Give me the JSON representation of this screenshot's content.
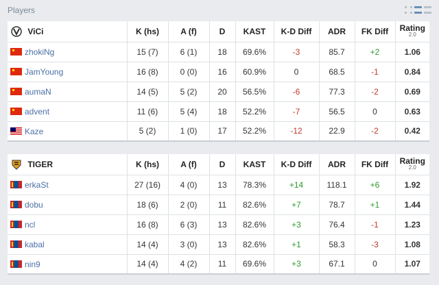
{
  "section": {
    "title": "Players"
  },
  "columns": [
    "K (hs)",
    "A (f)",
    "D",
    "KAST",
    "K-D Diff",
    "ADR",
    "FK Diff",
    "Rating"
  ],
  "rating_version": "2.0",
  "teams": [
    {
      "name": "ViCi",
      "players": [
        {
          "flag": "cn",
          "name": "zhokiNg",
          "k": "15 (7)",
          "a": "6 (1)",
          "d": "18",
          "kast": "69.6%",
          "kd": "-3",
          "kd_sign": "neg",
          "adr": "85.7",
          "fk": "+2",
          "fk_sign": "pos",
          "rating": "1.06"
        },
        {
          "flag": "cn",
          "name": "JamYoung",
          "k": "16 (8)",
          "a": "0 (0)",
          "d": "16",
          "kast": "60.9%",
          "kd": "0",
          "kd_sign": "neu",
          "adr": "68.5",
          "fk": "-1",
          "fk_sign": "neg",
          "rating": "0.84"
        },
        {
          "flag": "cn",
          "name": "aumaN",
          "k": "14 (5)",
          "a": "5 (2)",
          "d": "20",
          "kast": "56.5%",
          "kd": "-6",
          "kd_sign": "neg",
          "adr": "77.3",
          "fk": "-2",
          "fk_sign": "neg",
          "rating": "0.69"
        },
        {
          "flag": "cn",
          "name": "advent",
          "k": "11 (6)",
          "a": "5 (4)",
          "d": "18",
          "kast": "52.2%",
          "kd": "-7",
          "kd_sign": "neg",
          "adr": "56.5",
          "fk": "0",
          "fk_sign": "neu",
          "rating": "0.63"
        },
        {
          "flag": "my",
          "name": "Kaze",
          "k": "5 (2)",
          "a": "1 (0)",
          "d": "17",
          "kast": "52.2%",
          "kd": "-12",
          "kd_sign": "neg",
          "adr": "22.9",
          "fk": "-2",
          "fk_sign": "neg",
          "rating": "0.42"
        }
      ]
    },
    {
      "name": "TIGER",
      "players": [
        {
          "flag": "mn",
          "name": "erkaSt",
          "k": "27 (16)",
          "a": "4 (0)",
          "d": "13",
          "kast": "78.3%",
          "kd": "+14",
          "kd_sign": "pos",
          "adr": "118.1",
          "fk": "+6",
          "fk_sign": "pos",
          "rating": "1.92"
        },
        {
          "flag": "mn",
          "name": "dobu",
          "k": "18 (6)",
          "a": "2 (0)",
          "d": "11",
          "kast": "82.6%",
          "kd": "+7",
          "kd_sign": "pos",
          "adr": "78.7",
          "fk": "+1",
          "fk_sign": "pos",
          "rating": "1.44"
        },
        {
          "flag": "mn",
          "name": "ncl",
          "k": "16 (8)",
          "a": "6 (3)",
          "d": "13",
          "kast": "82.6%",
          "kd": "+3",
          "kd_sign": "pos",
          "adr": "76.4",
          "fk": "-1",
          "fk_sign": "neg",
          "rating": "1.23"
        },
        {
          "flag": "mn",
          "name": "kabal",
          "k": "14 (4)",
          "a": "3 (0)",
          "d": "13",
          "kast": "82.6%",
          "kd": "+1",
          "kd_sign": "pos",
          "adr": "58.3",
          "fk": "-3",
          "fk_sign": "neg",
          "rating": "1.08"
        },
        {
          "flag": "mn",
          "name": "nin9",
          "k": "14 (4)",
          "a": "4 (2)",
          "d": "11",
          "kast": "69.6%",
          "kd": "+3",
          "kd_sign": "pos",
          "adr": "67.1",
          "fk": "0",
          "fk_sign": "neu",
          "rating": "1.07"
        }
      ]
    }
  ],
  "colors": {
    "positive": "#2e9a2e",
    "negative": "#c0392b",
    "link": "#4a6fa5"
  },
  "icons": {
    "view_grid": "grid-view-icon",
    "view_list": "list-view-icon",
    "view_compact": "compact-view-icon"
  }
}
